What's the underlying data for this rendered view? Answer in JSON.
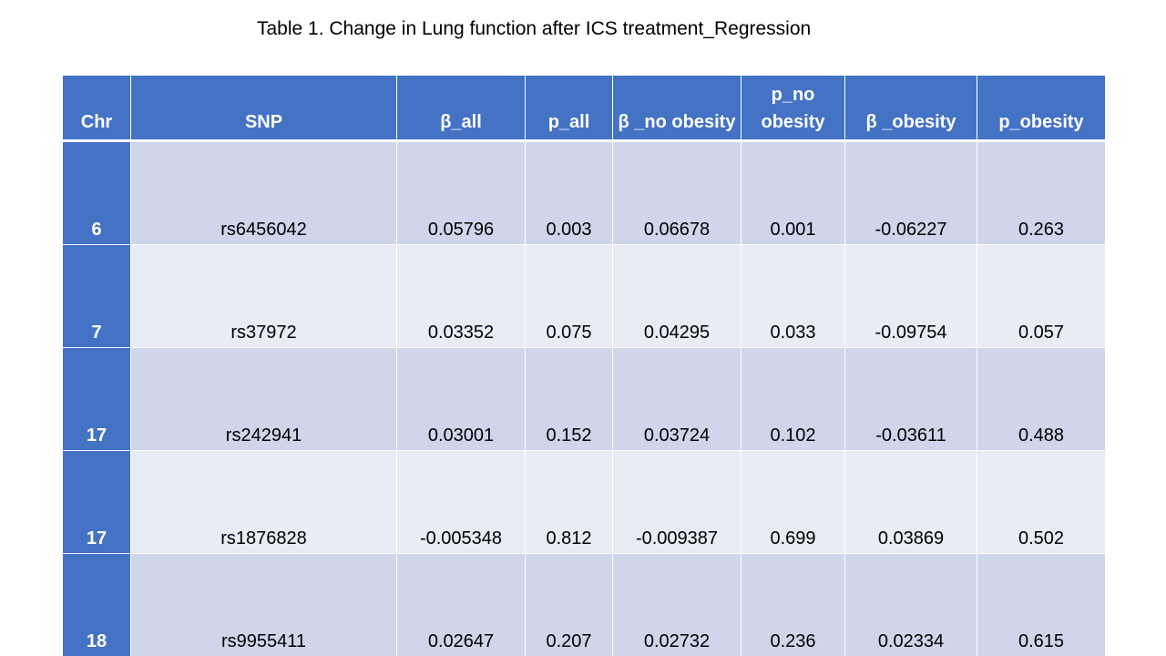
{
  "title": "Table 1. Change in Lung function after ICS treatment_Regression",
  "table": {
    "headers": [
      "Chr",
      "SNP",
      "β_all",
      "p_all",
      "β _no obesity",
      "p_no obesity",
      "β _obesity",
      "p_obesity"
    ],
    "rows": [
      [
        "6",
        "rs6456042",
        "0.05796",
        "0.003",
        "0.06678",
        "0.001",
        "-0.06227",
        "0.263"
      ],
      [
        "7",
        "rs37972",
        "0.03352",
        "0.075",
        "0.04295",
        "0.033",
        "-0.09754",
        "0.057"
      ],
      [
        "17",
        "rs242941",
        "0.03001",
        "0.152",
        "0.03724",
        "0.102",
        "-0.03611",
        "0.488"
      ],
      [
        "17",
        "rs1876828",
        "-0.005348",
        "0.812",
        "-0.009387",
        "0.699",
        "0.03869",
        "0.502"
      ],
      [
        "18",
        "rs9955411",
        "0.02647",
        "0.207",
        "0.02732",
        "0.236",
        "0.02334",
        "0.615"
      ]
    ]
  },
  "colors": {
    "header_bg": "#4472c4",
    "row_band_dark": "#cfd5ea",
    "row_band_light": "#e9ebf5"
  }
}
